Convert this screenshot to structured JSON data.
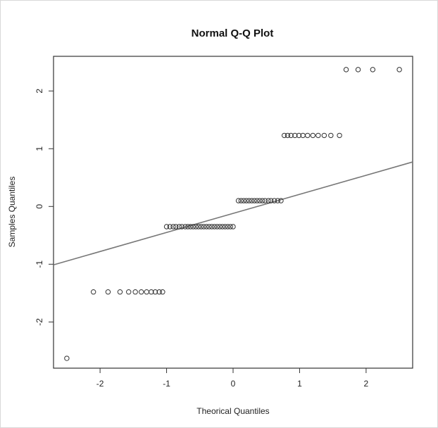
{
  "chart_data": {
    "type": "scatter",
    "title": "Normal Q-Q Plot",
    "xlabel": "Theorical Quantiles",
    "ylabel": "Samples Quantiles",
    "xlim": [
      -2.7,
      2.7
    ],
    "ylim": [
      -2.8,
      2.6
    ],
    "xticks": [
      -2,
      -1,
      0,
      1,
      2
    ],
    "yticks": [
      -2,
      -1,
      0,
      1,
      2
    ],
    "grid": false,
    "series": [
      {
        "points": [
          [
            -2.5,
            -2.63
          ],
          [
            -2.1,
            -1.48
          ],
          [
            -1.88,
            -1.48
          ],
          [
            -1.7,
            -1.48
          ],
          [
            -1.57,
            -1.48
          ],
          [
            -1.47,
            -1.48
          ],
          [
            -1.38,
            -1.48
          ],
          [
            -1.3,
            -1.48
          ],
          [
            -1.23,
            -1.48
          ],
          [
            -1.17,
            -1.48
          ],
          [
            -1.11,
            -1.48
          ],
          [
            -1.06,
            -1.48
          ],
          [
            -1.0,
            -0.35
          ],
          [
            -0.95,
            -0.35
          ],
          [
            -0.9,
            -0.35
          ],
          [
            -0.86,
            -0.35
          ],
          [
            -0.81,
            -0.35
          ],
          [
            -0.77,
            -0.35
          ],
          [
            -0.72,
            -0.35
          ],
          [
            -0.68,
            -0.35
          ],
          [
            -0.64,
            -0.35
          ],
          [
            -0.6,
            -0.35
          ],
          [
            -0.56,
            -0.35
          ],
          [
            -0.52,
            -0.35
          ],
          [
            -0.48,
            -0.35
          ],
          [
            -0.44,
            -0.35
          ],
          [
            -0.4,
            -0.35
          ],
          [
            -0.36,
            -0.35
          ],
          [
            -0.32,
            -0.35
          ],
          [
            -0.28,
            -0.35
          ],
          [
            -0.24,
            -0.35
          ],
          [
            -0.2,
            -0.35
          ],
          [
            -0.16,
            -0.35
          ],
          [
            -0.12,
            -0.35
          ],
          [
            -0.08,
            -0.35
          ],
          [
            -0.04,
            -0.35
          ],
          [
            0.0,
            -0.35
          ],
          [
            0.08,
            0.1
          ],
          [
            0.12,
            0.1
          ],
          [
            0.16,
            0.1
          ],
          [
            0.2,
            0.1
          ],
          [
            0.24,
            0.1
          ],
          [
            0.28,
            0.1
          ],
          [
            0.32,
            0.1
          ],
          [
            0.36,
            0.1
          ],
          [
            0.4,
            0.1
          ],
          [
            0.44,
            0.1
          ],
          [
            0.48,
            0.1
          ],
          [
            0.53,
            0.1
          ],
          [
            0.57,
            0.1
          ],
          [
            0.62,
            0.1
          ],
          [
            0.67,
            0.1
          ],
          [
            0.72,
            0.1
          ],
          [
            0.77,
            1.23
          ],
          [
            0.82,
            1.23
          ],
          [
            0.87,
            1.23
          ],
          [
            0.93,
            1.23
          ],
          [
            0.99,
            1.23
          ],
          [
            1.05,
            1.23
          ],
          [
            1.12,
            1.23
          ],
          [
            1.2,
            1.23
          ],
          [
            1.28,
            1.23
          ],
          [
            1.37,
            1.23
          ],
          [
            1.47,
            1.23
          ],
          [
            1.6,
            1.23
          ],
          [
            1.7,
            2.37
          ],
          [
            1.88,
            2.37
          ],
          [
            2.1,
            2.37
          ],
          [
            2.5,
            2.37
          ]
        ]
      }
    ],
    "reference_line": {
      "intercept": -0.12,
      "slope": 0.33
    }
  }
}
